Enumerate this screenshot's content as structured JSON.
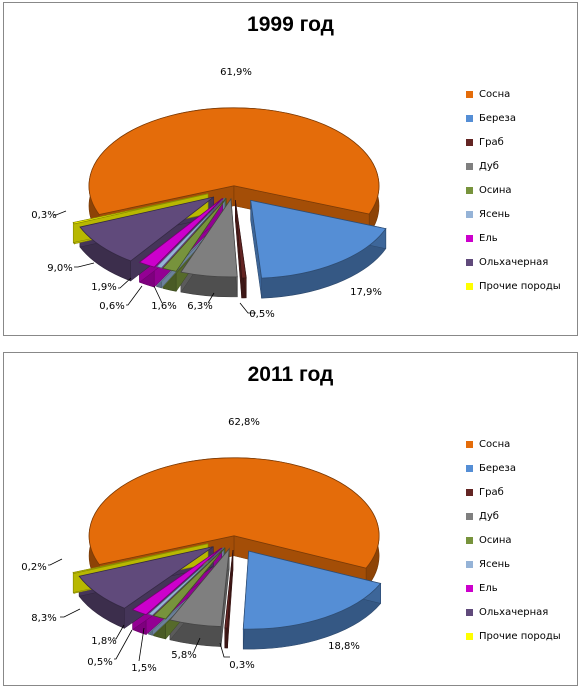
{
  "chart_data": [
    {
      "type": "pie",
      "title": "1999 год",
      "categories": [
        "Сосна",
        "Береза",
        "Граб",
        "Дуб",
        "Осина",
        "Ясень",
        "Ель",
        "Ольхачерная",
        "Прочие породы"
      ],
      "values": [
        61.9,
        17.9,
        0.5,
        6.3,
        1.6,
        0.6,
        1.9,
        9.0,
        0.3
      ],
      "labels": [
        "61,9%",
        "17,9%",
        "0,5%",
        "6,3%",
        "1,6%",
        "0,6%",
        "1,9%",
        "9,0%",
        "0,3%"
      ],
      "colors": [
        "#E46C0A",
        "#558ED5",
        "#632523",
        "#7F7F7F",
        "#77933C",
        "#95B3D7",
        "#CC00CC",
        "#604A7B",
        "#FFFF00"
      ],
      "legend_position": "right",
      "style": "3d-exploded"
    },
    {
      "type": "pie",
      "title": "2011 год",
      "categories": [
        "Сосна",
        "Береза",
        "Граб",
        "Дуб",
        "Осина",
        "Ясень",
        "Ель",
        "Ольхачерная",
        "Прочие породы"
      ],
      "values": [
        62.8,
        18.8,
        0.3,
        5.8,
        1.5,
        0.5,
        1.8,
        8.3,
        0.2
      ],
      "labels": [
        "62,8%",
        "18,8%",
        "0,3%",
        "5,8%",
        "1,5%",
        "0,5%",
        "1,8%",
        "8,3%",
        "0,2%"
      ],
      "colors": [
        "#E46C0A",
        "#558ED5",
        "#632523",
        "#7F7F7F",
        "#77933C",
        "#95B3D7",
        "#CC00CC",
        "#604A7B",
        "#FFFF00"
      ],
      "legend_position": "right",
      "style": "3d-exploded"
    }
  ]
}
